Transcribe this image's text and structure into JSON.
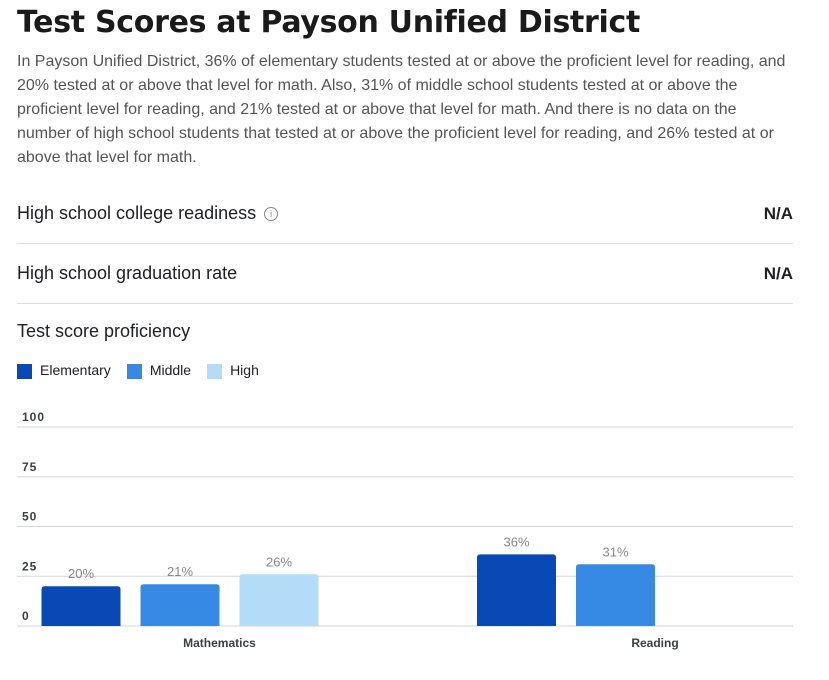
{
  "title": "Test Scores at Payson Unified District",
  "description": "In Payson Unified District, 36% of elementary students tested at or above the proficient level for reading, and 20% tested at or above that level for math. Also, 31% of middle school students tested at or above the proficient level for reading, and 21% tested at or above that level for math. And there is no data on the number of high school students that tested at or above the proficient level for reading, and 26% tested at or above that level for math.",
  "metrics": [
    {
      "label": "High school college readiness",
      "value": "N/A",
      "info_icon": "info-icon"
    },
    {
      "label": "High school graduation rate",
      "value": "N/A"
    }
  ],
  "chart_data": {
    "type": "bar",
    "title": "Test score proficiency",
    "categories": [
      "Mathematics",
      "Reading"
    ],
    "series": [
      {
        "name": "Elementary",
        "color": "#0849b5",
        "values": [
          20,
          36
        ],
        "labels": [
          "20%",
          "36%"
        ]
      },
      {
        "name": "Middle",
        "color": "#368ae3",
        "values": [
          21,
          31
        ],
        "labels": [
          "21%",
          "31%"
        ]
      },
      {
        "name": "High",
        "color": "#b3dcf8",
        "values": [
          26,
          null
        ],
        "labels": [
          "26%",
          ""
        ]
      }
    ],
    "ylim": [
      0,
      100
    ],
    "yticks": [
      "0",
      "25",
      "50",
      "75",
      "100"
    ],
    "grid": true,
    "legend": "top-left"
  }
}
